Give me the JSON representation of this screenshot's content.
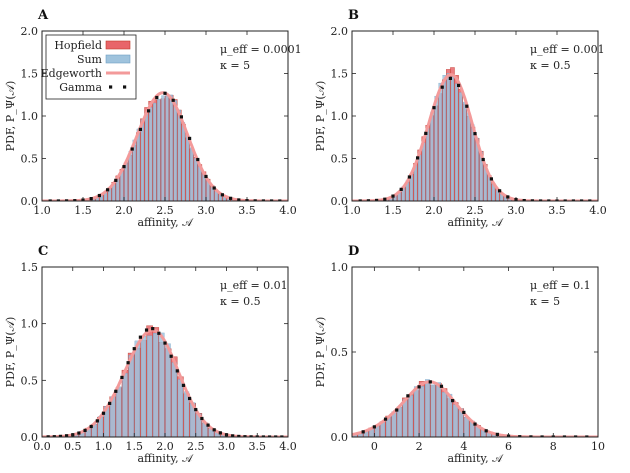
{
  "colors": {
    "hopfield_fill": "#e8656a",
    "hopfield_edge": "#c0392b",
    "sum_fill": "#9fc3dd",
    "sum_edge": "#6f9fc4",
    "edgeworth": "#f39a9a",
    "gamma": "#111111"
  },
  "legend": {
    "hopfield": "Hopfield",
    "sum": "Sum",
    "edgeworth": "Edgeworth",
    "gamma": "Gamma"
  },
  "chart_data": [
    {
      "type": "bar",
      "panel_label": "A",
      "xlabel": "affinity, 𝒜",
      "ylabel": "PDF, P_Ψ(𝒜)",
      "xlim": [
        1.0,
        4.0
      ],
      "ylim": [
        0.0,
        2.0
      ],
      "xticks": [
        "1.0",
        "1.5",
        "2.0",
        "2.5",
        "3.0",
        "3.5",
        "4.0"
      ],
      "yticks": [
        "0.0",
        "0.5",
        "1.0",
        "1.5",
        "2.0"
      ],
      "annotation": [
        "μ_eff = 0.0001",
        "κ = 5"
      ],
      "mean": 2.45,
      "sd": 0.31,
      "peak": 1.27,
      "skew": 0.08,
      "bin_width": 0.05,
      "gamma_step": 0.1,
      "has_legend": true
    },
    {
      "type": "bar",
      "panel_label": "B",
      "xlabel": "affinity, 𝒜",
      "ylabel": "PDF, P_Ψ(𝒜)",
      "xlim": [
        1.0,
        4.0
      ],
      "ylim": [
        0.0,
        2.0
      ],
      "xticks": [
        "1.0",
        "1.5",
        "2.0",
        "2.5",
        "3.0",
        "3.5",
        "4.0"
      ],
      "yticks": [
        "0.0",
        "0.5",
        "1.0",
        "1.5",
        "2.0"
      ],
      "annotation": [
        "μ_eff = 0.001",
        "κ = 0.5"
      ],
      "mean": 2.18,
      "sd": 0.27,
      "peak": 1.48,
      "skew": 0.1,
      "bin_width": 0.05,
      "gamma_step": 0.1,
      "has_legend": false
    },
    {
      "type": "bar",
      "panel_label": "C",
      "xlabel": "affinity, 𝒜",
      "ylabel": "PDF, P_Ψ(𝒜)",
      "xlim": [
        0.0,
        4.0
      ],
      "ylim": [
        0.0,
        1.5
      ],
      "xticks": [
        "0.0",
        "0.5",
        "1.0",
        "1.5",
        "2.0",
        "2.5",
        "3.0",
        "3.5",
        "4.0"
      ],
      "yticks": [
        "0.0",
        "0.5",
        "1.0",
        "1.5"
      ],
      "annotation": [
        "μ_eff = 0.01",
        "κ = 0.5"
      ],
      "mean": 1.72,
      "sd": 0.45,
      "peak": 0.93,
      "skew": 0.18,
      "bin_width": 0.1,
      "gamma_step": 0.1,
      "has_legend": false
    },
    {
      "type": "bar",
      "panel_label": "D",
      "xlabel": "affinity, 𝒜",
      "ylabel": "PDF, P_Ψ(𝒜)",
      "xlim": [
        -1.0,
        10.0
      ],
      "ylim": [
        0.0,
        1.0
      ],
      "xticks": [
        "0",
        "2",
        "4",
        "6",
        "8",
        "10"
      ],
      "yticks": [
        "0.0",
        "0.5",
        "1.0"
      ],
      "annotation": [
        "μ_eff = 0.1",
        "κ = 5"
      ],
      "mean": 2.0,
      "sd": 1.35,
      "peak": 0.3,
      "skew": 0.45,
      "bin_width": 0.25,
      "gamma_step": 0.5,
      "has_legend": false
    }
  ]
}
